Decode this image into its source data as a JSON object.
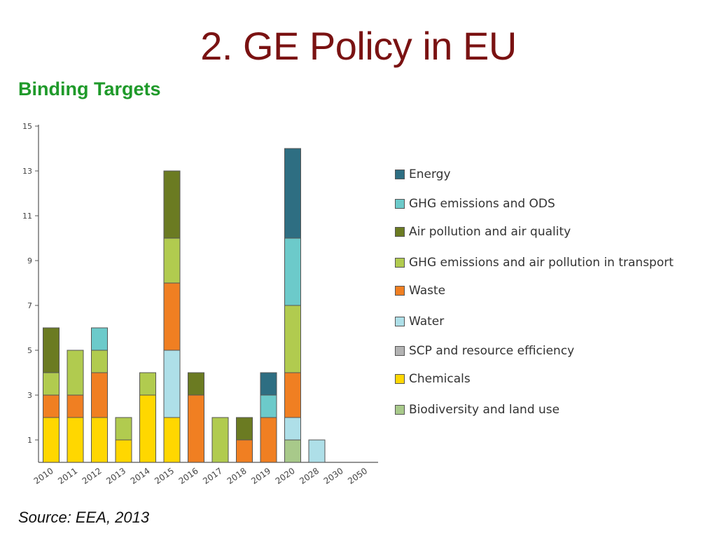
{
  "slide": {
    "title": "2. GE Policy in EU",
    "subtitle": "Binding Targets",
    "source": "Source: EEA, 2013"
  },
  "colors": {
    "title": "#7a1212",
    "subtitle": "#1f9a2a"
  },
  "chart_data": {
    "type": "bar",
    "stacked": true,
    "categories": [
      "2010",
      "2011",
      "2012",
      "2013",
      "2014",
      "2015",
      "2016",
      "2017",
      "2018",
      "2019",
      "2020",
      "2028",
      "2030",
      "2050"
    ],
    "ylim": [
      0,
      15
    ],
    "yticks": [
      1,
      3,
      5,
      7,
      9,
      11,
      13,
      15
    ],
    "legend_position": "right",
    "grid": false,
    "series": [
      {
        "name": "Biodiversity and land use",
        "color": "#a8c98a",
        "values": [
          0,
          0,
          0,
          0,
          0,
          0,
          0,
          0,
          0,
          0,
          1,
          0,
          0,
          0
        ]
      },
      {
        "name": "Chemicals",
        "color": "#ffd700",
        "values": [
          2,
          2,
          2,
          1,
          3,
          2,
          0,
          0,
          0,
          0,
          0,
          0,
          0,
          0
        ]
      },
      {
        "name": "SCP and resource efficiency",
        "color": "#b3b3b3",
        "values": [
          0,
          0,
          0,
          0,
          0,
          0,
          0,
          0,
          0,
          0,
          0,
          0,
          0,
          0
        ]
      },
      {
        "name": "Water",
        "color": "#aedfe8",
        "values": [
          0,
          0,
          0,
          0,
          0,
          3,
          0,
          0,
          0,
          0,
          1,
          1,
          0,
          0
        ]
      },
      {
        "name": "Waste",
        "color": "#f07f22",
        "values": [
          1,
          1,
          2,
          0,
          0,
          3,
          3,
          0,
          1,
          2,
          2,
          0,
          0,
          0
        ]
      },
      {
        "name": "GHG emissions and air pollution in transport",
        "color": "#b1cb4f",
        "values": [
          1,
          2,
          1,
          1,
          1,
          2,
          0,
          2,
          0,
          0,
          3,
          0,
          0,
          0
        ]
      },
      {
        "name": "Air pollution and air quality",
        "color": "#6b7b22",
        "values": [
          2,
          0,
          0,
          0,
          0,
          3,
          1,
          0,
          1,
          0,
          0,
          0,
          0,
          0
        ]
      },
      {
        "name": "GHG emissions and ODS",
        "color": "#6ccaca",
        "values": [
          0,
          0,
          1,
          0,
          0,
          0,
          0,
          0,
          0,
          1,
          3,
          0,
          0,
          0
        ]
      },
      {
        "name": "Energy",
        "color": "#2e6e82",
        "values": [
          0,
          0,
          0,
          0,
          0,
          0,
          0,
          0,
          0,
          1,
          4,
          0,
          0,
          0
        ]
      }
    ],
    "legend_order": [
      "Energy",
      "GHG emissions and ODS",
      "Air pollution and air quality",
      "GHG emissions and air pollution in transport",
      "Waste",
      "Water",
      "SCP and resource efficiency",
      "Chemicals",
      "Biodiversity and land use"
    ]
  }
}
